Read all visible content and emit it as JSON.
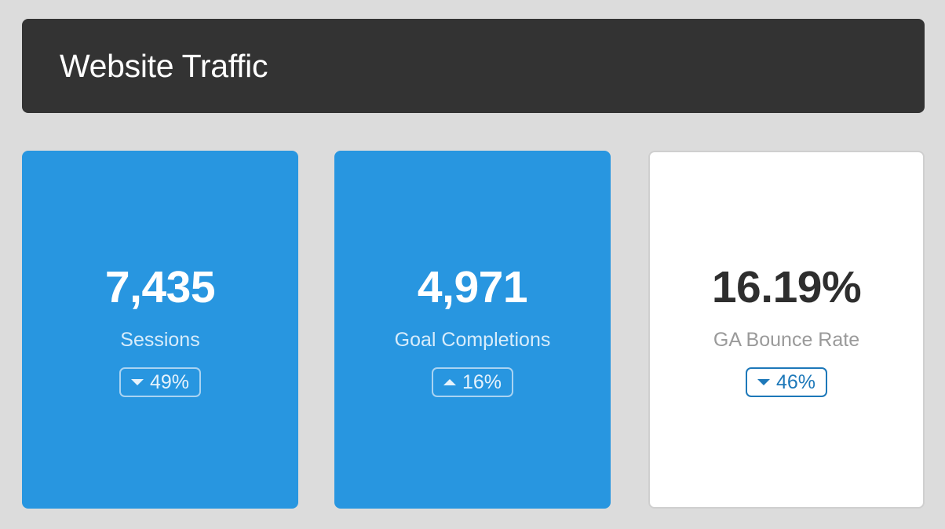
{
  "header": {
    "title": "Website Traffic"
  },
  "cards": [
    {
      "value": "7,435",
      "label": "Sessions",
      "change": "49%",
      "direction": "down",
      "direction_icon": "caret-down-icon",
      "background": "#2896e0"
    },
    {
      "value": "4,971",
      "label": "Goal Completions",
      "change": "16%",
      "direction": "up",
      "direction_icon": "caret-up-icon",
      "background": "#2896e0"
    },
    {
      "value": "16.19%",
      "label": "GA Bounce Rate",
      "change": "46%",
      "direction": "down",
      "direction_icon": "caret-down-icon",
      "background": "#ffffff"
    }
  ],
  "colors": {
    "page_background": "#dcdcdc",
    "header_background": "#333333",
    "accent_blue": "#2896e0",
    "badge_blue": "#1d78b9"
  }
}
